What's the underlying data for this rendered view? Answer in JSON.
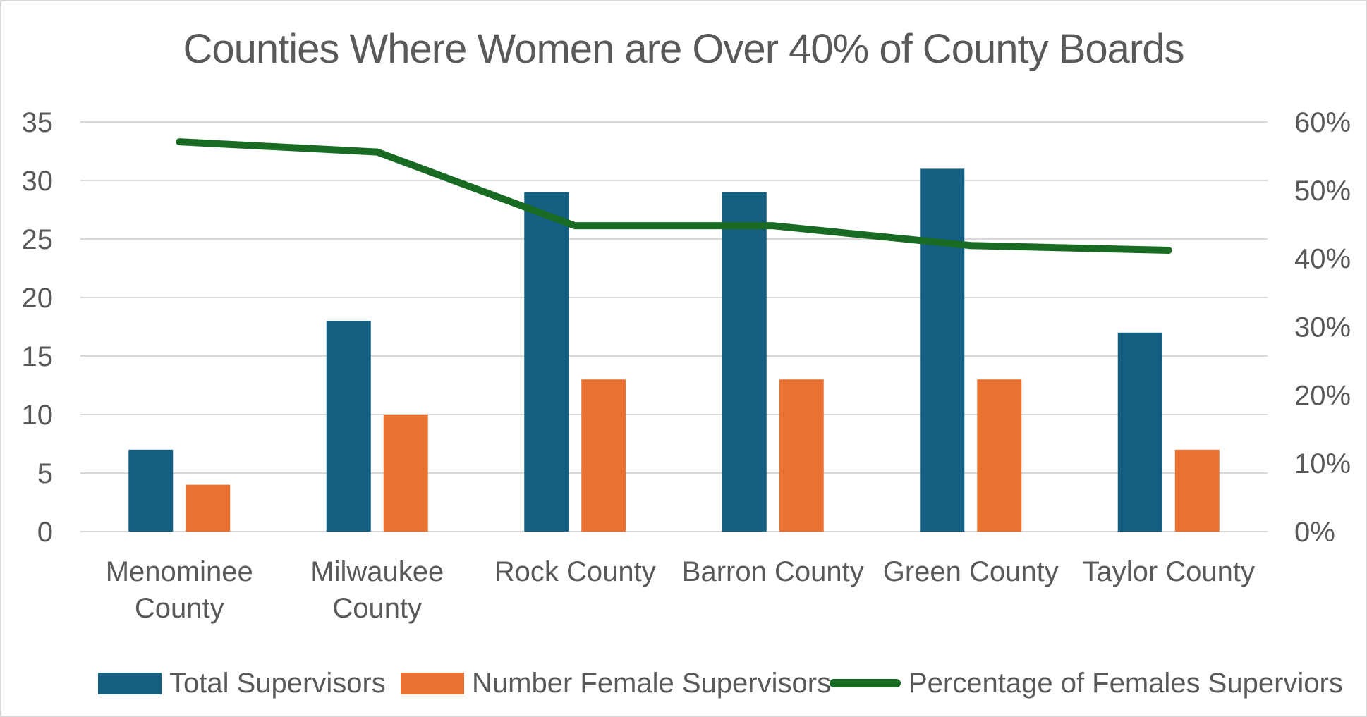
{
  "page": {
    "background": "#FFFFFF",
    "border_color": "#D9D9D9"
  },
  "title": {
    "text": "Counties Where Women are Over 40% of County Boards",
    "color": "#595959"
  },
  "chart_data": {
    "type": "combo-bar-line",
    "title": "Counties Where Women are Over 40% of County Boards",
    "categories": [
      "Menominee County",
      "Milwaukee County",
      "Rock County",
      "Barron County",
      "Green County",
      "Taylor County"
    ],
    "category_label_lines": [
      [
        "Menominee",
        "County"
      ],
      [
        "Milwaukee",
        "County"
      ],
      [
        "Rock County"
      ],
      [
        "Barron County"
      ],
      [
        "Green County"
      ],
      [
        "Taylor County"
      ]
    ],
    "series": [
      {
        "name": "Total Supervisors",
        "type": "bar",
        "axis": "left",
        "color": "#156082",
        "values": [
          7,
          18,
          29,
          29,
          31,
          17
        ]
      },
      {
        "name": "Number Female Supervisors",
        "type": "bar",
        "axis": "left",
        "color": "#E97132",
        "values": [
          4,
          10,
          13,
          13,
          13,
          7
        ]
      },
      {
        "name": "Percentage of Females Superviors",
        "type": "line",
        "axis": "right",
        "color": "#196B24",
        "unit": "%",
        "values": [
          57.1,
          55.6,
          44.8,
          44.8,
          41.9,
          41.2
        ]
      }
    ],
    "left_axis": {
      "min": 0,
      "max": 35,
      "step": 5,
      "ticks": [
        "0",
        "5",
        "10",
        "15",
        "20",
        "25",
        "30",
        "35"
      ]
    },
    "right_axis": {
      "min": 0,
      "max": 60,
      "step": 10,
      "ticks": [
        "0%",
        "10%",
        "20%",
        "30%",
        "40%",
        "50%",
        "60%"
      ]
    },
    "grid": true,
    "legend_position": "bottom",
    "text_color": "#595959",
    "gridline_color": "#D9D9D9"
  }
}
